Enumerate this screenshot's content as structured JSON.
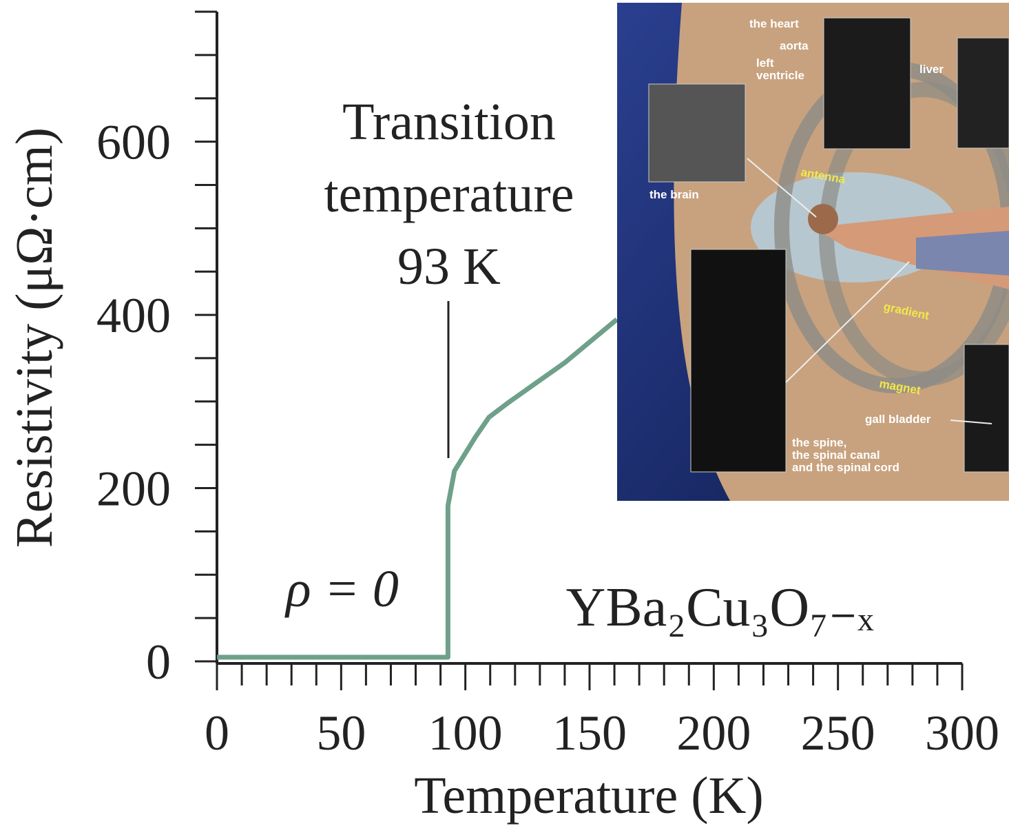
{
  "chart_data": {
    "type": "line",
    "x_label": "Temperature (K)",
    "y_label": "Resistivity (μΩ·cm)",
    "annotations": [
      "Transition",
      "temperature",
      "93 K",
      "ρ = 0",
      "YBa₂Cu₃O₇₋ₓ"
    ],
    "series": [
      {
        "color": "#6fa08a",
        "x": [
          0,
          93,
          93,
          95.6,
          104,
          109.5,
          117.8,
          140,
          161
        ],
        "values": [
          0,
          0,
          175,
          215,
          254,
          277,
          295,
          340,
          390
        ]
      }
    ],
    "xlim": [
      0,
      300
    ],
    "xticks": [
      0,
      50,
      100,
      150,
      200,
      250,
      300
    ],
    "xminorticks": [
      10,
      20,
      30,
      40,
      60,
      70,
      80,
      90,
      110,
      120,
      130,
      140,
      160,
      170,
      180,
      190,
      210,
      220,
      230,
      240,
      260,
      270,
      280,
      290
    ],
    "ylim": [
      0,
      750
    ],
    "yticks": [
      0,
      200,
      400,
      600
    ],
    "yminorticks": [
      50,
      100,
      150,
      250,
      300,
      350,
      450,
      500,
      550,
      650,
      700,
      750
    ]
  },
  "inset": {
    "labels": [
      "the heart",
      "aorta",
      "left",
      "ventricle",
      "liver",
      "the brain",
      "antenna",
      "gradient",
      "magnet",
      "gall bladder",
      "the spine,",
      "the spinal canal",
      "and the spinal cord"
    ]
  }
}
